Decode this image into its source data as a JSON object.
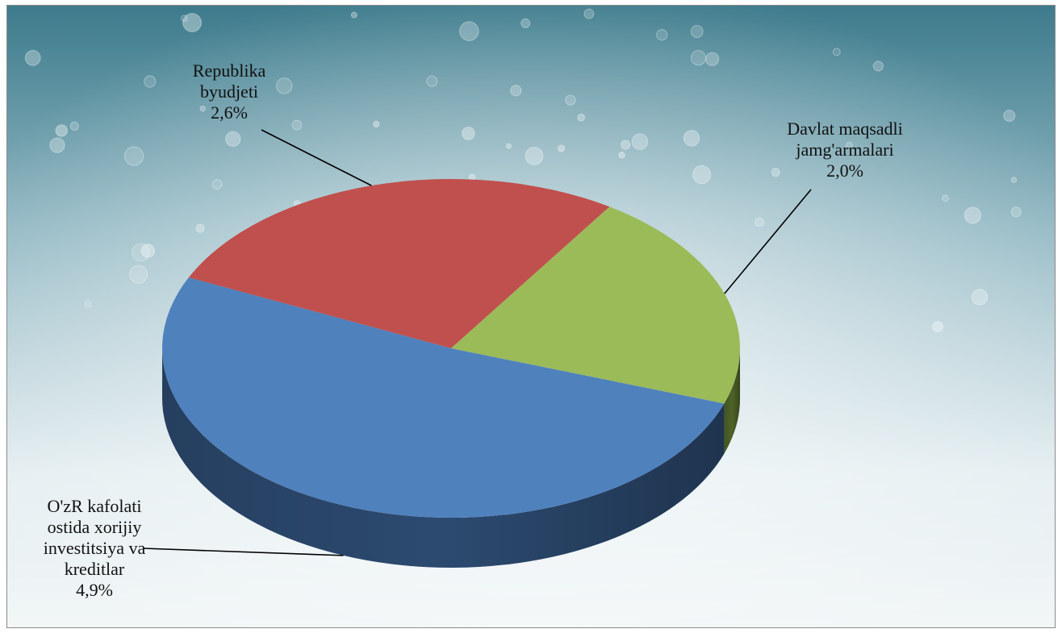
{
  "chart_data": {
    "type": "pie",
    "title": "",
    "style": "3d",
    "slices": [
      {
        "label_lines": [
          "Republika",
          "byudjeti"
        ],
        "value_label": "2,6%",
        "value": 2.6,
        "color": "#c0504d",
        "side_color": "#7d2a28"
      },
      {
        "label_lines": [
          "Davlat maqsadli",
          "jamg'armalari"
        ],
        "value_label": "2,0%",
        "value": 2.0,
        "color": "#9bbb59",
        "side_color": "#4f6328"
      },
      {
        "label_lines": [
          "O'zR kafolati",
          "ostida xorijiy",
          "investitsiya va",
          "kreditlar"
        ],
        "value_label": "4,9%",
        "value": 4.9,
        "color": "#4f81bd",
        "side_color": "#2c4a70"
      }
    ]
  }
}
